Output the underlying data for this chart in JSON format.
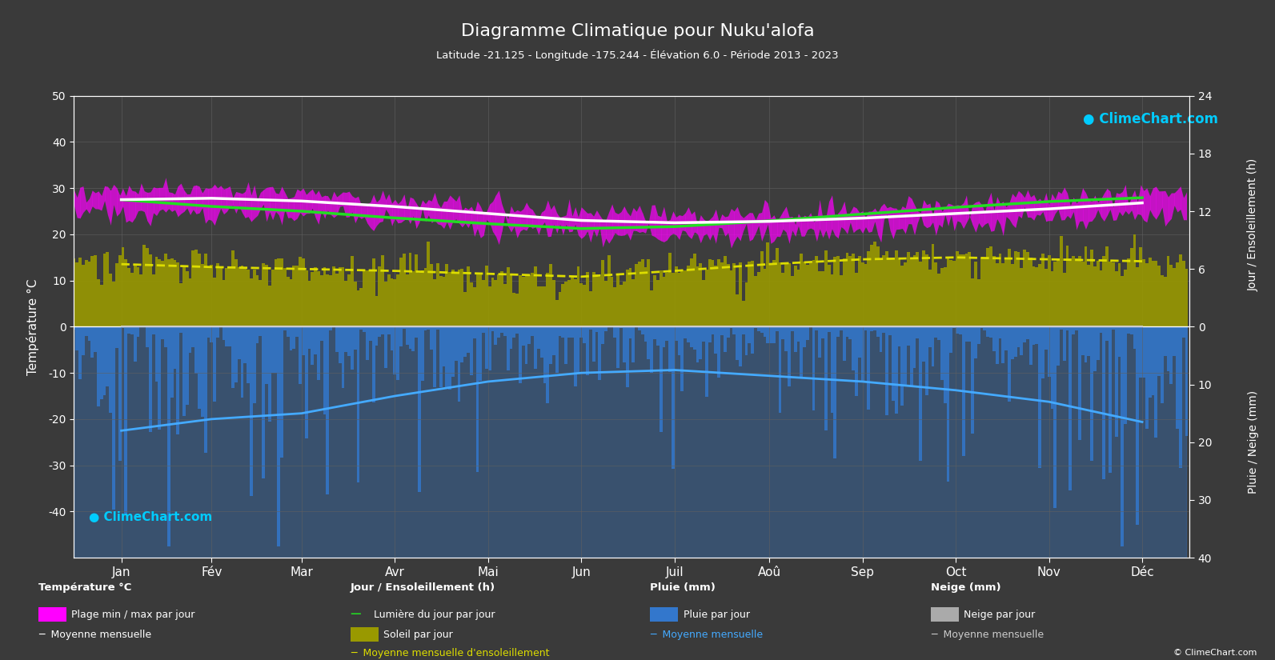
{
  "title": "Diagramme Climatique pour Nuku'alofa",
  "subtitle": "Latitude -21.125 - Longitude -175.244 - Élévation 6.0 - Période 2013 - 2023",
  "background_color": "#3a3a3a",
  "plot_bg_color": "#3d3d3d",
  "months": [
    "Jan",
    "Fév",
    "Mar",
    "Avr",
    "Mai",
    "Jun",
    "Juil",
    "Aoû",
    "Sep",
    "Oct",
    "Nov",
    "Déc"
  ],
  "days_per_month": [
    31,
    28,
    31,
    30,
    31,
    30,
    31,
    31,
    30,
    31,
    30,
    31
  ],
  "temp_ylim": [
    -50,
    50
  ],
  "temp_mean_monthly": [
    27.5,
    27.8,
    27.2,
    26.0,
    24.5,
    23.0,
    22.5,
    22.8,
    23.5,
    24.5,
    25.5,
    26.8
  ],
  "temp_max_monthly": [
    29.5,
    29.8,
    29.2,
    27.8,
    26.2,
    24.8,
    24.2,
    24.5,
    25.2,
    26.5,
    27.8,
    29.0
  ],
  "temp_min_monthly": [
    24.5,
    24.8,
    24.2,
    23.0,
    21.5,
    20.2,
    19.8,
    20.0,
    21.0,
    22.2,
    23.5,
    24.5
  ],
  "daylight_monthly": [
    13.2,
    12.5,
    12.0,
    11.3,
    10.7,
    10.2,
    10.4,
    11.0,
    11.7,
    12.4,
    13.0,
    13.4
  ],
  "sunshine_monthly": [
    6.5,
    6.2,
    6.0,
    5.8,
    5.5,
    5.2,
    5.8,
    6.5,
    7.0,
    7.2,
    7.0,
    6.8
  ],
  "rain_monthly_mean_mm": [
    18.0,
    16.0,
    15.0,
    12.0,
    9.5,
    8.0,
    7.5,
    8.5,
    9.5,
    11.0,
    13.0,
    16.5
  ],
  "snow_monthly_mean_mm": [
    0.0,
    0.0,
    0.0,
    0.0,
    0.0,
    0.0,
    0.0,
    0.0,
    0.0,
    0.0,
    0.0,
    0.0
  ],
  "rain_axis_max": 40,
  "sun_axis_max": 24,
  "grid_color": "#606060",
  "temp_mean_color": "#ffffff",
  "temp_range_color": "#ff00ff",
  "daylight_color": "#22dd22",
  "sunshine_fill_color": "#999900",
  "sunshine_mean_color": "#dddd00",
  "rain_fill_color": "#3377cc",
  "snow_fill_color": "#aaaaaa",
  "rain_mean_color": "#44aaff",
  "snow_mean_color": "#cccccc",
  "text_color": "#ffffff",
  "logo_color": "#00ccff"
}
